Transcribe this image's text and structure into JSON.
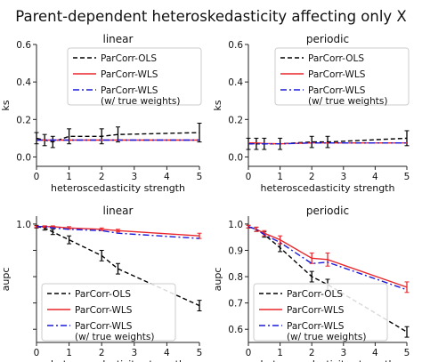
{
  "figure": {
    "title": "Parent-dependent heteroskedasticity affecting only X"
  },
  "colors": {
    "ols": "#000000",
    "wls": "#e8262b",
    "true_weights": "#1a1adb"
  },
  "chart_data": [
    {
      "type": "line",
      "title": "linear",
      "xlabel": "heteroscedasticity strength",
      "ylabel": "ks",
      "xlim": [
        0,
        5
      ],
      "ylim": [
        -0.05,
        0.6
      ],
      "xticks": [
        0,
        1,
        2,
        3,
        4,
        5
      ],
      "yticks": [
        0.0,
        0.2,
        0.4,
        0.6
      ],
      "ytick_labels": [
        "0.0",
        "0.2",
        "0.4",
        "0.6"
      ],
      "grid": false,
      "legend_position": "upper-right",
      "x": [
        0,
        0.25,
        0.5,
        1,
        2,
        2.5,
        5
      ],
      "series": [
        {
          "name": "ParCorr-OLS",
          "style": "dashed",
          "color": "#000000",
          "values": [
            0.1,
            0.09,
            0.08,
            0.11,
            0.11,
            0.12,
            0.13
          ],
          "err": [
            0.03,
            0.03,
            0.03,
            0.04,
            0.04,
            0.04,
            0.05
          ]
        },
        {
          "name": "ParCorr-WLS",
          "style": "solid",
          "color": "#e8262b",
          "values": [
            0.09,
            0.09,
            0.09,
            0.09,
            0.09,
            0.09,
            0.09
          ]
        },
        {
          "name": "ParCorr-WLS",
          "name_line2": "(w/ true weights)",
          "style": "dashdot",
          "color": "#1a1adb",
          "values": [
            0.09,
            0.09,
            0.09,
            0.09,
            0.09,
            0.09,
            0.09
          ]
        }
      ]
    },
    {
      "type": "line",
      "title": "periodic",
      "xlabel": "heteroscedasticity strength",
      "ylabel": "ks",
      "xlim": [
        0,
        5
      ],
      "ylim": [
        -0.05,
        0.6
      ],
      "xticks": [
        0,
        1,
        2,
        3,
        4,
        5
      ],
      "yticks": [
        0.0,
        0.2,
        0.4,
        0.6
      ],
      "ytick_labels": [
        "0.0",
        "0.2",
        "0.4",
        "0.6"
      ],
      "grid": false,
      "legend_position": "upper-right",
      "x": [
        0,
        0.25,
        0.5,
        1,
        2,
        2.5,
        5
      ],
      "series": [
        {
          "name": "ParCorr-OLS",
          "style": "dashed",
          "color": "#000000",
          "values": [
            0.07,
            0.07,
            0.07,
            0.07,
            0.08,
            0.08,
            0.1
          ],
          "err": [
            0.03,
            0.03,
            0.03,
            0.03,
            0.03,
            0.03,
            0.04
          ]
        },
        {
          "name": "ParCorr-WLS",
          "style": "solid",
          "color": "#e8262b",
          "values": [
            0.075,
            0.075,
            0.072,
            0.07,
            0.075,
            0.075,
            0.075
          ]
        },
        {
          "name": "ParCorr-WLS",
          "name_line2": "(w/ true weights)",
          "style": "dashdot",
          "color": "#1a1adb",
          "values": [
            0.07,
            0.07,
            0.07,
            0.07,
            0.075,
            0.075,
            0.075
          ]
        }
      ]
    },
    {
      "type": "line",
      "title": "linear",
      "xlabel": "heteroscedasticity strength",
      "ylabel": "aupc",
      "xlim": [
        0,
        5
      ],
      "ylim": [
        0.55,
        1.03
      ],
      "xticks": [
        0,
        1,
        2,
        3,
        4,
        5
      ],
      "yticks": [
        0.6,
        0.7,
        0.8,
        0.9,
        1.0
      ],
      "ytick_labels": [
        "",
        "",
        "",
        "",
        "1.0"
      ],
      "grid": false,
      "legend_position": "lower-left",
      "x": [
        0,
        0.25,
        0.5,
        1,
        2,
        2.5,
        5
      ],
      "series": [
        {
          "name": "ParCorr-OLS",
          "style": "dashed",
          "color": "#000000",
          "values": [
            0.99,
            0.985,
            0.97,
            0.94,
            0.88,
            0.83,
            0.69
          ],
          "err": [
            0.005,
            0.008,
            0.01,
            0.015,
            0.02,
            0.02,
            0.02
          ]
        },
        {
          "name": "ParCorr-WLS",
          "style": "solid",
          "color": "#e8262b",
          "values": [
            0.99,
            0.99,
            0.99,
            0.985,
            0.98,
            0.975,
            0.955
          ],
          "err": [
            0.003,
            0.003,
            0.003,
            0.005,
            0.005,
            0.005,
            0.01
          ]
        },
        {
          "name": "ParCorr-WLS",
          "name_line2": "(w/ true weights)",
          "style": "dashdot",
          "color": "#1a1adb",
          "values": [
            0.99,
            0.99,
            0.985,
            0.98,
            0.975,
            0.965,
            0.945
          ]
        }
      ]
    },
    {
      "type": "line",
      "title": "periodic",
      "xlabel": "heteroscedasticity strength",
      "ylabel": "aupc",
      "xlim": [
        0,
        5
      ],
      "ylim": [
        0.55,
        1.03
      ],
      "xticks": [
        0,
        1,
        2,
        3,
        4,
        5
      ],
      "yticks": [
        0.6,
        0.7,
        0.8,
        0.9,
        1.0
      ],
      "ytick_labels": [
        "0.6",
        "0.7",
        "0.8",
        "0.9",
        "1.0"
      ],
      "grid": false,
      "legend_position": "lower-left",
      "x": [
        0,
        0.25,
        0.5,
        1,
        2,
        2.5,
        5
      ],
      "series": [
        {
          "name": "ParCorr-OLS",
          "style": "dashed",
          "color": "#000000",
          "values": [
            0.99,
            0.98,
            0.96,
            0.91,
            0.8,
            0.77,
            0.59
          ],
          "err": [
            0.005,
            0.008,
            0.01,
            0.015,
            0.02,
            0.02,
            0.02
          ]
        },
        {
          "name": "ParCorr-WLS",
          "style": "solid",
          "color": "#e8262b",
          "values": [
            0.99,
            0.98,
            0.965,
            0.94,
            0.87,
            0.865,
            0.76
          ],
          "err": [
            0.005,
            0.008,
            0.01,
            0.015,
            0.02,
            0.025,
            0.02
          ]
        },
        {
          "name": "ParCorr-WLS",
          "name_line2": "(w/ true weights)",
          "style": "dashdot",
          "color": "#1a1adb",
          "values": [
            0.99,
            0.98,
            0.96,
            0.93,
            0.85,
            0.855,
            0.75
          ]
        }
      ]
    }
  ]
}
